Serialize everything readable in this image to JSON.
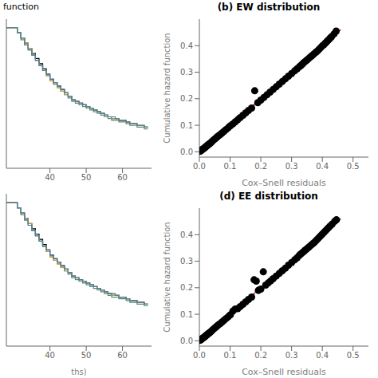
{
  "chart_data": [
    {
      "type": "step",
      "title": "function",
      "x": [
        28,
        30,
        31,
        32,
        33,
        34,
        35,
        36,
        37,
        38,
        39,
        40,
        41,
        42,
        43,
        44,
        45,
        46,
        47,
        48,
        49,
        50,
        51,
        52,
        53,
        54,
        55,
        56,
        57,
        58,
        59,
        60,
        61,
        62,
        63,
        64,
        65,
        66,
        67
      ],
      "series": [
        {
          "color": "#000000",
          "values": [
            1.0,
            1.0,
            0.997,
            0.994,
            0.991,
            0.988,
            0.985,
            0.982,
            0.979,
            0.976,
            0.973,
            0.97,
            0.968,
            0.966,
            0.964,
            0.962,
            0.96,
            0.958,
            0.957,
            0.956,
            0.955,
            0.954,
            0.953,
            0.952,
            0.951,
            0.95,
            0.949,
            0.948,
            0.947,
            0.947,
            0.946,
            0.946,
            0.945,
            0.944,
            0.944,
            0.943,
            0.943,
            0.942,
            0.942
          ]
        },
        {
          "color": "#5B8A72",
          "values": [
            1.0,
            1.0,
            0.997,
            0.993,
            0.99,
            0.987,
            0.984,
            0.981,
            0.978,
            0.975,
            0.972,
            0.969,
            0.967,
            0.965,
            0.963,
            0.961,
            0.959,
            0.957,
            0.956,
            0.955,
            0.954,
            0.953,
            0.952,
            0.951,
            0.95,
            0.949,
            0.948,
            0.947,
            0.946,
            0.946,
            0.945,
            0.945,
            0.944,
            0.943,
            0.943,
            0.942,
            0.942,
            0.941,
            0.941
          ]
        },
        {
          "color": "#C49A3C",
          "values": [
            1.0,
            1.0,
            0.997,
            0.994,
            0.991,
            0.988,
            0.984,
            0.981,
            0.978,
            0.975,
            0.972,
            0.969,
            0.967,
            0.965,
            0.963,
            0.961,
            0.96,
            0.958,
            0.957,
            0.956,
            0.955,
            0.954,
            0.953,
            0.952,
            0.951,
            0.95,
            0.949,
            0.948,
            0.947,
            0.947,
            0.946,
            0.946,
            0.945,
            0.944,
            0.944,
            0.943,
            0.943,
            0.942,
            0.942
          ]
        },
        {
          "color": "#4A7FA5",
          "values": [
            1.0,
            1.0,
            0.997,
            0.994,
            0.99,
            0.987,
            0.984,
            0.981,
            0.978,
            0.975,
            0.973,
            0.97,
            0.968,
            0.966,
            0.964,
            0.962,
            0.96,
            0.958,
            0.957,
            0.956,
            0.955,
            0.954,
            0.953,
            0.952,
            0.951,
            0.95,
            0.949,
            0.948,
            0.948,
            0.947,
            0.946,
            0.946,
            0.945,
            0.944,
            0.944,
            0.943,
            0.943,
            0.942,
            0.942
          ]
        }
      ],
      "xlim": [
        28,
        68
      ],
      "ylim": [
        0.918,
        1.005
      ],
      "xticks": [
        40,
        50,
        60
      ],
      "yticks": [],
      "tick_labels": "x"
    },
    {
      "type": "scatter",
      "title": "(b) EW distribution",
      "xlabel": "Cox–Snell residuals",
      "ylabel": "Cumulative hazard function",
      "xlim": [
        0.0,
        0.55
      ],
      "ylim": [
        -0.02,
        0.5
      ],
      "xticks": [
        {
          "value": 0.0,
          "label": "0.0"
        },
        0.1,
        0.2,
        0.3,
        0.4,
        0.5
      ],
      "yticks": [
        {
          "value": 0.0,
          "label": "0.0"
        },
        0.1,
        0.2,
        0.3,
        0.4
      ],
      "series": [
        {
          "type": "line",
          "color": "#CC0000",
          "x": [
            0,
            0.46
          ],
          "values": [
            0,
            0.46
          ]
        },
        {
          "type": "scatter",
          "color": "#000000",
          "x": [
            0.002,
            0.004,
            0.006,
            0.008,
            0.01,
            0.012,
            0.015,
            0.018,
            0.021,
            0.024,
            0.027,
            0.03,
            0.034,
            0.038,
            0.042,
            0.047,
            0.052,
            0.057,
            0.062,
            0.068,
            0.074,
            0.08,
            0.087,
            0.094,
            0.101,
            0.109,
            0.117,
            0.125,
            0.133,
            0.142,
            0.151,
            0.16,
            0.17,
            0.18,
            0.19,
            0.2,
            0.21,
            0.22,
            0.23,
            0.24,
            0.25,
            0.26,
            0.27,
            0.28,
            0.29,
            0.3,
            0.31,
            0.318,
            0.325,
            0.33,
            0.335,
            0.34,
            0.345,
            0.35,
            0.355,
            0.36,
            0.365,
            0.37,
            0.375,
            0.38,
            0.385,
            0.39,
            0.395,
            0.4,
            0.405,
            0.41,
            0.415,
            0.42,
            0.425,
            0.43,
            0.438,
            0.445
          ],
          "values": [
            0.002,
            0.003,
            0.005,
            0.007,
            0.009,
            0.011,
            0.013,
            0.016,
            0.019,
            0.022,
            0.025,
            0.028,
            0.031,
            0.035,
            0.04,
            0.045,
            0.05,
            0.055,
            0.06,
            0.065,
            0.071,
            0.077,
            0.084,
            0.091,
            0.098,
            0.105,
            0.113,
            0.121,
            0.129,
            0.138,
            0.147,
            0.156,
            0.165,
            0.23,
            0.185,
            0.195,
            0.205,
            0.215,
            0.225,
            0.235,
            0.245,
            0.255,
            0.265,
            0.275,
            0.285,
            0.295,
            0.305,
            0.313,
            0.32,
            0.325,
            0.33,
            0.336,
            0.341,
            0.346,
            0.351,
            0.356,
            0.361,
            0.366,
            0.371,
            0.376,
            0.381,
            0.387,
            0.393,
            0.399,
            0.404,
            0.41,
            0.416,
            0.422,
            0.428,
            0.434,
            0.444,
            0.455
          ]
        }
      ]
    },
    {
      "type": "step",
      "xlabel": "ths)",
      "x": [
        28,
        30,
        31,
        32,
        33,
        34,
        35,
        36,
        37,
        38,
        39,
        40,
        41,
        42,
        43,
        44,
        45,
        46,
        47,
        48,
        49,
        50,
        51,
        52,
        53,
        54,
        55,
        56,
        57,
        58,
        59,
        60,
        61,
        62,
        63,
        64,
        65,
        66,
        67
      ],
      "series": [
        {
          "color": "#000000",
          "values": [
            1.0,
            1.0,
            0.997,
            0.994,
            0.991,
            0.988,
            0.985,
            0.982,
            0.979,
            0.976,
            0.973,
            0.97,
            0.968,
            0.966,
            0.964,
            0.962,
            0.96,
            0.958,
            0.957,
            0.956,
            0.955,
            0.954,
            0.953,
            0.952,
            0.951,
            0.95,
            0.949,
            0.948,
            0.947,
            0.947,
            0.946,
            0.946,
            0.945,
            0.944,
            0.944,
            0.943,
            0.943,
            0.942,
            0.942
          ]
        },
        {
          "color": "#5B8A72",
          "values": [
            1.0,
            1.0,
            0.997,
            0.993,
            0.99,
            0.987,
            0.984,
            0.981,
            0.978,
            0.975,
            0.972,
            0.969,
            0.967,
            0.965,
            0.963,
            0.961,
            0.959,
            0.957,
            0.956,
            0.955,
            0.954,
            0.953,
            0.952,
            0.951,
            0.95,
            0.949,
            0.948,
            0.947,
            0.946,
            0.946,
            0.945,
            0.945,
            0.944,
            0.943,
            0.943,
            0.942,
            0.942,
            0.941,
            0.941
          ]
        },
        {
          "color": "#C49A3C",
          "values": [
            1.0,
            1.0,
            0.997,
            0.994,
            0.991,
            0.988,
            0.984,
            0.981,
            0.978,
            0.975,
            0.972,
            0.969,
            0.967,
            0.965,
            0.963,
            0.961,
            0.96,
            0.958,
            0.957,
            0.956,
            0.955,
            0.954,
            0.953,
            0.952,
            0.951,
            0.95,
            0.949,
            0.948,
            0.947,
            0.947,
            0.946,
            0.946,
            0.945,
            0.944,
            0.944,
            0.943,
            0.943,
            0.942,
            0.942
          ]
        },
        {
          "color": "#4A7FA5",
          "values": [
            1.0,
            1.0,
            0.997,
            0.994,
            0.99,
            0.987,
            0.984,
            0.981,
            0.978,
            0.975,
            0.973,
            0.97,
            0.968,
            0.966,
            0.964,
            0.962,
            0.96,
            0.958,
            0.957,
            0.956,
            0.955,
            0.954,
            0.953,
            0.952,
            0.951,
            0.95,
            0.949,
            0.948,
            0.948,
            0.947,
            0.946,
            0.946,
            0.945,
            0.944,
            0.944,
            0.943,
            0.943,
            0.942,
            0.942
          ]
        }
      ],
      "xlim": [
        28,
        68
      ],
      "ylim": [
        0.918,
        1.005
      ],
      "xticks": [
        40,
        50,
        60
      ],
      "yticks": [],
      "tick_labels": "x"
    },
    {
      "type": "scatter",
      "title": "(d) EE distribution",
      "xlabel": "Cox–Snell residuals",
      "ylabel": "Cumulative hazard function",
      "xlim": [
        0.0,
        0.55
      ],
      "ylim": [
        -0.02,
        0.5
      ],
      "xticks": [
        {
          "value": 0.0,
          "label": "0.0"
        },
        0.1,
        0.2,
        0.3,
        0.4,
        0.5
      ],
      "yticks": [
        {
          "value": 0.0,
          "label": "0.0"
        },
        0.1,
        0.2,
        0.3,
        0.4
      ],
      "series": [
        {
          "type": "line",
          "color": "#CC0000",
          "x": [
            0,
            0.46
          ],
          "values": [
            0,
            0.46
          ]
        },
        {
          "type": "scatter",
          "color": "#000000",
          "x": [
            0.002,
            0.004,
            0.006,
            0.008,
            0.01,
            0.012,
            0.015,
            0.018,
            0.021,
            0.024,
            0.027,
            0.03,
            0.034,
            0.038,
            0.042,
            0.047,
            0.052,
            0.057,
            0.062,
            0.068,
            0.074,
            0.08,
            0.087,
            0.094,
            0.101,
            0.109,
            0.117,
            0.125,
            0.133,
            0.142,
            0.151,
            0.16,
            0.17,
            0.178,
            0.185,
            0.192,
            0.2,
            0.208,
            0.216,
            0.224,
            0.232,
            0.24,
            0.25,
            0.26,
            0.27,
            0.28,
            0.29,
            0.3,
            0.31,
            0.318,
            0.325,
            0.33,
            0.335,
            0.34,
            0.345,
            0.35,
            0.355,
            0.36,
            0.365,
            0.37,
            0.375,
            0.38,
            0.385,
            0.39,
            0.395,
            0.4,
            0.405,
            0.41,
            0.415,
            0.42,
            0.425,
            0.432,
            0.44,
            0.446
          ],
          "values": [
            0.002,
            0.003,
            0.005,
            0.007,
            0.009,
            0.011,
            0.013,
            0.016,
            0.019,
            0.022,
            0.025,
            0.028,
            0.031,
            0.035,
            0.04,
            0.045,
            0.05,
            0.055,
            0.06,
            0.065,
            0.071,
            0.077,
            0.084,
            0.091,
            0.098,
            0.112,
            0.12,
            0.121,
            0.129,
            0.138,
            0.147,
            0.156,
            0.165,
            0.23,
            0.225,
            0.19,
            0.195,
            0.26,
            0.21,
            0.218,
            0.226,
            0.234,
            0.244,
            0.254,
            0.264,
            0.274,
            0.285,
            0.295,
            0.305,
            0.313,
            0.322,
            0.327,
            0.332,
            0.337,
            0.342,
            0.347,
            0.352,
            0.357,
            0.362,
            0.367,
            0.372,
            0.378,
            0.384,
            0.39,
            0.396,
            0.402,
            0.408,
            0.414,
            0.42,
            0.426,
            0.432,
            0.44,
            0.45,
            0.456
          ]
        }
      ]
    }
  ]
}
